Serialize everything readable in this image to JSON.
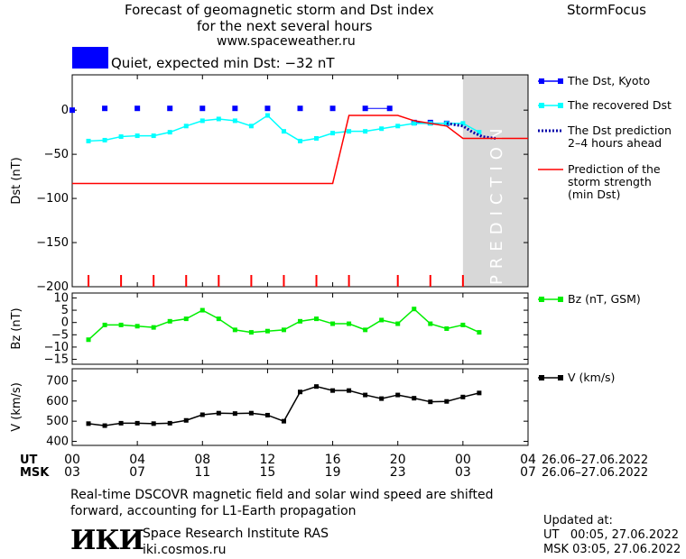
{
  "header": {
    "title_line1": "Forecast of geomagnetic storm and Dst index",
    "title_line2": "for the next several hours",
    "url": "www.spaceweather.ru",
    "brand": "StormFocus",
    "status": "Quiet, expected min Dst: −32 nT",
    "status_color": "#0000ff"
  },
  "footer": {
    "note_line1": "Real-time DSCOVR magnetic field and solar wind speed are shifted",
    "note_line2": "forward, accounting for L1-Earth propagation",
    "org_logo": "ИКИ",
    "org_name": "Space Research Institute RAS",
    "org_site": "iki.cosmos.ru",
    "updated_label": "Updated at:",
    "updated_ut": "UT   00:05, 27.06.2022",
    "updated_msk": "MSK 03:05, 27.06.2022"
  },
  "chart_data": {
    "type": "line",
    "x_axis": {
      "ut_label": "UT",
      "msk_label": "MSK",
      "ut_ticks": [
        "00",
        "04",
        "08",
        "12",
        "16",
        "20",
        "00",
        "04"
      ],
      "msk_ticks": [
        "03",
        "07",
        "11",
        "15",
        "19",
        "23",
        "03",
        "07"
      ],
      "ut_range_label": "26.06–27.06.2022",
      "msk_range_label": "26.06–27.06.2022",
      "xlim_hours": [
        0,
        28
      ]
    },
    "prediction_label": "PREDICTION",
    "prediction_start_hour": 24,
    "panels": [
      {
        "ylabel": "Dst (nT)",
        "ylim": [
          -200,
          40
        ],
        "yticks": [
          0,
          -50,
          -100,
          -150,
          -200
        ],
        "series": [
          {
            "name": "The Dst, Kyoto",
            "color": "#0000ff",
            "marker": "square",
            "x": [
              0,
              2,
              4,
              6,
              8,
              10,
              12,
              14,
              16,
              18,
              19.5,
              21,
              22,
              23
            ],
            "y": [
              0,
              2,
              2,
              2,
              2,
              2,
              2,
              2,
              2,
              2,
              2,
              -14,
              -14,
              -15
            ]
          },
          {
            "name": "The recovered Dst",
            "color": "#00ffff",
            "marker": "square",
            "x": [
              1,
              2,
              3,
              4,
              5,
              6,
              7,
              8,
              9,
              10,
              11,
              12,
              13,
              14,
              15,
              16,
              17,
              18,
              19,
              20,
              21,
              22,
              23,
              24,
              25
            ],
            "y": [
              -35,
              -34,
              -30,
              -29,
              -29,
              -25,
              -18,
              -12,
              -10,
              -12,
              -18,
              -6,
              -24,
              -35,
              -32,
              -26,
              -24,
              -24,
              -21,
              -18,
              -15,
              -15,
              -15,
              -15,
              -25
            ]
          },
          {
            "name": "The Dst prediction 2–4 hours ahead",
            "color": "#0000aa",
            "style": "dotted",
            "x": [
              23,
              24,
              24.6,
              25.2,
              26
            ],
            "y": [
              -15,
              -18,
              -25,
              -30,
              -32
            ]
          },
          {
            "name": "Prediction of the storm strength (min Dst)",
            "color": "#ff0000",
            "x": [
              0,
              16,
              17,
              20,
              21,
              22,
              23,
              24,
              28
            ],
            "y": [
              -83,
              -83,
              -6,
              -6,
              -12,
              -15,
              -18,
              -32,
              -32
            ]
          }
        ],
        "storm_ticks_hours": [
          1,
          3,
          5,
          7,
          9,
          11,
          13,
          15,
          17,
          20,
          22,
          24
        ]
      },
      {
        "ylabel": "Bz (nT)",
        "ylim": [
          -17,
          12
        ],
        "yticks": [
          10,
          5,
          0,
          -5,
          -10,
          -15
        ],
        "series": [
          {
            "name": "Bz (nT, GSM)",
            "color": "#00ee00",
            "marker": "square",
            "x": [
              1,
              2,
              3,
              4,
              5,
              6,
              7,
              8,
              9,
              10,
              11,
              12,
              13,
              14,
              15,
              16,
              17,
              18,
              19,
              20,
              21,
              22,
              23,
              24,
              25
            ],
            "y": [
              -7,
              -1,
              -1,
              -1.5,
              -2,
              0.5,
              1.5,
              5,
              1.5,
              -3,
              -4,
              -3.5,
              -3,
              0.5,
              1.5,
              -0.5,
              -0.5,
              -3,
              1,
              -0.5,
              5.5,
              -0.5,
              -2.5,
              -1,
              -4
            ]
          }
        ]
      },
      {
        "ylabel": "V (km/s)",
        "ylim": [
          380,
          760
        ],
        "yticks": [
          700,
          600,
          500,
          400
        ],
        "series": [
          {
            "name": "V (km/s)",
            "color": "#000000",
            "marker": "square",
            "x": [
              1,
              2,
              3,
              4,
              5,
              6,
              7,
              8,
              9,
              10,
              11,
              12,
              13,
              14,
              15,
              16,
              17,
              18,
              19,
              20,
              21,
              22,
              23,
              24,
              25
            ],
            "y": [
              488,
              478,
              490,
              490,
              488,
              490,
              504,
              532,
              540,
              538,
              540,
              530,
              500,
              645,
              672,
              652,
              652,
              630,
              612,
              630,
              614,
              596,
              598,
              620,
              640
            ]
          }
        ]
      }
    ]
  }
}
